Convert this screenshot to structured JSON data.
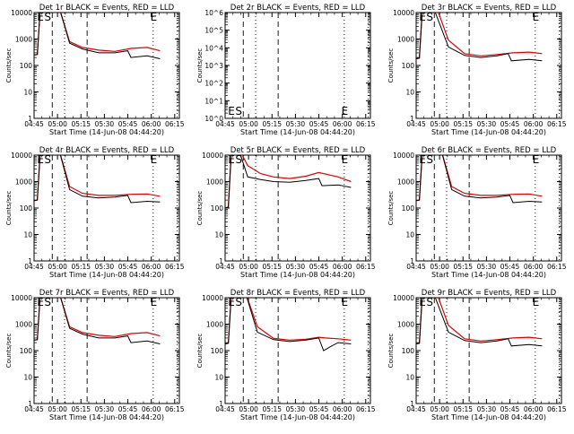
{
  "time_ticks": [
    "04:45",
    "05:00",
    "05:15",
    "05:30",
    "05:45",
    "06:00",
    "06:15"
  ],
  "xlabel": "Start Time (14-Jun-08 04:44:20)",
  "ylabel": "Counts/sec",
  "series_colors": {
    "events": "#000000",
    "lld": "#e00000"
  },
  "chart_data": [
    {
      "type": "line",
      "title": "Det 1r BLACK = Events, RED = LLD",
      "yscale": "log",
      "ylim": [
        1,
        10000
      ],
      "y_ticks": [
        "1",
        "10",
        "100",
        "1000",
        "10000"
      ],
      "markers": [
        "E",
        "S",
        "E"
      ],
      "series": [
        {
          "values": [
            [
              0,
              250
            ],
            [
              2,
              260
            ],
            [
              4,
              20000
            ],
            [
              15,
              20000
            ],
            [
              22,
              700
            ],
            [
              30,
              420
            ],
            [
              40,
              300
            ],
            [
              50,
              300
            ],
            [
              58,
              360
            ],
            [
              60,
              200
            ],
            [
              70,
              230
            ],
            [
              78,
              180
            ]
          ]
        },
        {
          "values": [
            [
              0,
              250
            ],
            [
              2,
              260
            ],
            [
              4,
              20000
            ],
            [
              15,
              20000
            ],
            [
              22,
              800
            ],
            [
              30,
              480
            ],
            [
              40,
              380
            ],
            [
              50,
              340
            ],
            [
              60,
              440
            ],
            [
              70,
              480
            ],
            [
              78,
              360
            ]
          ]
        }
      ]
    },
    {
      "type": "line",
      "title": "Det 2r BLACK = Events, RED = LLD",
      "yscale": "log",
      "ylim": [
        1,
        1000000
      ],
      "y_ticks": [
        "10^0",
        "10^1",
        "10^2",
        "10^3",
        "10^4",
        "10^5",
        "10^6"
      ],
      "markers": [
        "E",
        "S",
        "E"
      ],
      "series": []
    },
    {
      "type": "line",
      "title": "Det 3r BLACK = Events, RED = LLD",
      "yscale": "log",
      "ylim": [
        1,
        10000
      ],
      "y_ticks": [
        "1",
        "10",
        "100",
        "1000",
        "10000"
      ],
      "markers": [
        "E",
        "S",
        "E"
      ],
      "series": [
        {
          "values": [
            [
              0,
              180
            ],
            [
              2,
              190
            ],
            [
              4,
              20000
            ],
            [
              10,
              20000
            ],
            [
              20,
              500
            ],
            [
              30,
              240
            ],
            [
              40,
              200
            ],
            [
              50,
              230
            ],
            [
              57,
              280
            ],
            [
              59,
              150
            ],
            [
              70,
              170
            ],
            [
              78,
              150
            ]
          ]
        },
        {
          "values": [
            [
              0,
              180
            ],
            [
              2,
              190
            ],
            [
              4,
              20000
            ],
            [
              12,
              20000
            ],
            [
              20,
              900
            ],
            [
              30,
              280
            ],
            [
              40,
              230
            ],
            [
              50,
              260
            ],
            [
              60,
              300
            ],
            [
              70,
              320
            ],
            [
              78,
              280
            ]
          ]
        }
      ]
    },
    {
      "type": "line",
      "title": "Det 4r BLACK = Events, RED = LLD",
      "yscale": "log",
      "ylim": [
        1,
        10000
      ],
      "y_ticks": [
        "1",
        "10",
        "100",
        "1000",
        "10000"
      ],
      "markers": [
        "E",
        "S",
        "E"
      ],
      "series": [
        {
          "values": [
            [
              0,
              190
            ],
            [
              2,
              200
            ],
            [
              4,
              20000
            ],
            [
              15,
              20000
            ],
            [
              22,
              500
            ],
            [
              30,
              280
            ],
            [
              40,
              240
            ],
            [
              50,
              260
            ],
            [
              58,
              300
            ],
            [
              60,
              160
            ],
            [
              70,
              180
            ],
            [
              78,
              170
            ]
          ]
        },
        {
          "values": [
            [
              0,
              190
            ],
            [
              2,
              200
            ],
            [
              4,
              20000
            ],
            [
              15,
              20000
            ],
            [
              22,
              650
            ],
            [
              30,
              360
            ],
            [
              40,
              300
            ],
            [
              50,
              300
            ],
            [
              60,
              330
            ],
            [
              70,
              340
            ],
            [
              78,
              280
            ]
          ]
        }
      ]
    },
    {
      "type": "line",
      "title": "Det 5r BLACK = Events, RED = LLD",
      "yscale": "log",
      "ylim": [
        1,
        10000
      ],
      "y_ticks": [
        "1",
        "10",
        "100",
        "1000",
        "10000"
      ],
      "markers": [
        "E",
        "S",
        "E"
      ],
      "series": [
        {
          "values": [
            [
              0,
              100
            ],
            [
              2,
              110
            ],
            [
              4,
              20000
            ],
            [
              8,
              20000
            ],
            [
              14,
              1500
            ],
            [
              22,
              1200
            ],
            [
              30,
              1000
            ],
            [
              40,
              950
            ],
            [
              50,
              1100
            ],
            [
              58,
              1300
            ],
            [
              60,
              700
            ],
            [
              70,
              750
            ],
            [
              78,
              600
            ]
          ]
        },
        {
          "values": [
            [
              0,
              100
            ],
            [
              2,
              110
            ],
            [
              4,
              20000
            ],
            [
              8,
              20000
            ],
            [
              14,
              4000
            ],
            [
              22,
              2000
            ],
            [
              30,
              1500
            ],
            [
              40,
              1300
            ],
            [
              50,
              1600
            ],
            [
              58,
              2200
            ],
            [
              70,
              1500
            ],
            [
              78,
              1000
            ]
          ]
        }
      ]
    },
    {
      "type": "line",
      "title": "Det 6r BLACK = Events, RED = LLD",
      "yscale": "log",
      "ylim": [
        1,
        10000
      ],
      "y_ticks": [
        "1",
        "10",
        "100",
        "1000",
        "10000"
      ],
      "markers": [
        "E",
        "S",
        "E"
      ],
      "series": [
        {
          "values": [
            [
              0,
              190
            ],
            [
              2,
              200
            ],
            [
              4,
              20000
            ],
            [
              15,
              20000
            ],
            [
              22,
              500
            ],
            [
              30,
              280
            ],
            [
              40,
              240
            ],
            [
              50,
              260
            ],
            [
              58,
              300
            ],
            [
              60,
              160
            ],
            [
              70,
              180
            ],
            [
              78,
              170
            ]
          ]
        },
        {
          "values": [
            [
              0,
              190
            ],
            [
              2,
              200
            ],
            [
              4,
              20000
            ],
            [
              15,
              20000
            ],
            [
              22,
              650
            ],
            [
              30,
              360
            ],
            [
              40,
              300
            ],
            [
              50,
              300
            ],
            [
              60,
              330
            ],
            [
              70,
              340
            ],
            [
              78,
              280
            ]
          ]
        }
      ]
    },
    {
      "type": "line",
      "title": "Det 7r BLACK = Events, RED = LLD",
      "yscale": "log",
      "ylim": [
        1,
        10000
      ],
      "y_ticks": [
        "1",
        "10",
        "100",
        "1000",
        "10000"
      ],
      "markers": [
        "E",
        "S",
        "E"
      ],
      "series": [
        {
          "values": [
            [
              0,
              250
            ],
            [
              2,
              260
            ],
            [
              4,
              20000
            ],
            [
              15,
              20000
            ],
            [
              22,
              700
            ],
            [
              30,
              420
            ],
            [
              40,
              300
            ],
            [
              50,
              300
            ],
            [
              58,
              360
            ],
            [
              60,
              200
            ],
            [
              70,
              230
            ],
            [
              78,
              180
            ]
          ]
        },
        {
          "values": [
            [
              0,
              250
            ],
            [
              2,
              260
            ],
            [
              4,
              20000
            ],
            [
              15,
              20000
            ],
            [
              22,
              800
            ],
            [
              30,
              480
            ],
            [
              40,
              380
            ],
            [
              50,
              340
            ],
            [
              60,
              440
            ],
            [
              70,
              480
            ],
            [
              78,
              360
            ]
          ]
        }
      ]
    },
    {
      "type": "line",
      "title": "Det 8r BLACK = Events, RED = LLD",
      "yscale": "log",
      "ylim": [
        1,
        10000
      ],
      "y_ticks": [
        "1",
        "10",
        "100",
        "1000",
        "10000"
      ],
      "markers": [
        "E",
        "S",
        "E"
      ],
      "series": [
        {
          "values": [
            [
              0,
              180
            ],
            [
              2,
              190
            ],
            [
              4,
              20000
            ],
            [
              12,
              20000
            ],
            [
              20,
              500
            ],
            [
              30,
              260
            ],
            [
              40,
              220
            ],
            [
              50,
              250
            ],
            [
              58,
              300
            ],
            [
              61,
              100
            ],
            [
              66,
              150
            ],
            [
              70,
              200
            ],
            [
              78,
              180
            ]
          ]
        },
        {
          "values": [
            [
              0,
              180
            ],
            [
              2,
              190
            ],
            [
              4,
              20000
            ],
            [
              12,
              20000
            ],
            [
              20,
              800
            ],
            [
              30,
              290
            ],
            [
              40,
              250
            ],
            [
              50,
              270
            ],
            [
              58,
              320
            ],
            [
              62,
              300
            ],
            [
              70,
              280
            ],
            [
              78,
              250
            ]
          ]
        }
      ]
    },
    {
      "type": "line",
      "title": "Det 9r BLACK = Events, RED = LLD",
      "yscale": "log",
      "ylim": [
        1,
        10000
      ],
      "y_ticks": [
        "1",
        "10",
        "100",
        "1000",
        "10000"
      ],
      "markers": [
        "E",
        "S",
        "E"
      ],
      "series": [
        {
          "values": [
            [
              0,
              180
            ],
            [
              2,
              190
            ],
            [
              4,
              20000
            ],
            [
              10,
              20000
            ],
            [
              20,
              500
            ],
            [
              30,
              240
            ],
            [
              40,
              200
            ],
            [
              50,
              230
            ],
            [
              57,
              280
            ],
            [
              59,
              150
            ],
            [
              70,
              170
            ],
            [
              78,
              150
            ]
          ]
        },
        {
          "values": [
            [
              0,
              180
            ],
            [
              2,
              190
            ],
            [
              4,
              20000
            ],
            [
              12,
              20000
            ],
            [
              20,
              900
            ],
            [
              30,
              280
            ],
            [
              40,
              230
            ],
            [
              50,
              260
            ],
            [
              60,
              300
            ],
            [
              70,
              320
            ],
            [
              78,
              280
            ]
          ]
        }
      ]
    }
  ]
}
